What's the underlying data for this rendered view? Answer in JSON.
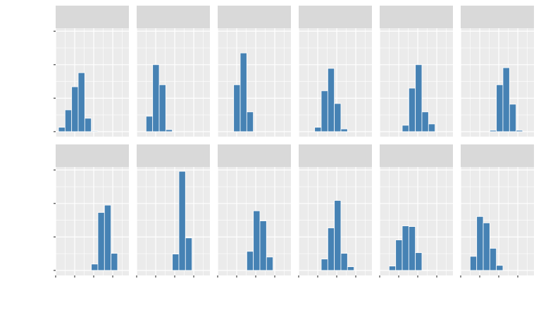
{
  "chart_data": {
    "type": "bar",
    "subtype": "faceted-histogram",
    "layout": {
      "rows": 2,
      "cols": 6
    },
    "title": "",
    "xlabel": "",
    "ylabel": "",
    "strip_labels": [
      "",
      "",
      "",
      "",
      "",
      "",
      "",
      "",
      "",
      "",
      "",
      ""
    ],
    "xlim": [
      0,
      3.85
    ],
    "ylim": [
      -0.15,
      3.09
    ],
    "x_breaks": [
      0,
      1,
      2,
      3
    ],
    "y_breaks": [
      0,
      1,
      2,
      3
    ],
    "tick_labels_shown": false,
    "bin_start": 0.15,
    "bin_width": 0.345,
    "grid": true,
    "colors": {
      "bar": "#4682B4",
      "bar_outline": "#FFFFFF",
      "panel_bg": "#EBEBEB",
      "strip_bg": "#D9D9D9",
      "grid": "#FFFFFF",
      "tick": "#333333"
    },
    "panels": [
      {
        "counts": [
          0.13,
          0.65,
          1.34,
          1.76,
          0.4,
          0.02,
          0,
          0,
          0,
          0,
          0
        ]
      },
      {
        "counts": [
          0,
          0.46,
          2.0,
          1.4,
          0.06,
          0,
          0,
          0,
          0,
          0,
          0
        ]
      },
      {
        "counts": [
          0,
          0,
          1.4,
          2.35,
          0.59,
          0,
          0,
          0,
          0,
          0,
          0
        ]
      },
      {
        "counts": [
          0,
          0,
          0.13,
          1.22,
          1.89,
          0.84,
          0.08,
          0,
          0,
          0,
          0
        ]
      },
      {
        "counts": [
          0,
          0,
          0,
          0.19,
          1.3,
          2.0,
          0.59,
          0.23,
          0,
          0,
          0
        ]
      },
      {
        "counts": [
          0,
          0,
          0,
          0,
          0.04,
          1.4,
          1.91,
          0.82,
          0.04,
          0,
          0
        ]
      },
      {
        "counts": [
          0,
          0,
          0,
          0,
          0,
          0.19,
          1.73,
          1.95,
          0.51,
          0,
          0
        ]
      },
      {
        "counts": [
          0,
          0,
          0,
          0,
          0,
          0.49,
          2.96,
          0.97,
          0,
          0,
          0
        ]
      },
      {
        "counts": [
          0,
          0,
          0,
          0,
          0.57,
          1.78,
          1.48,
          0.4,
          0,
          0,
          0
        ]
      },
      {
        "counts": [
          0,
          0,
          0,
          0.34,
          1.27,
          2.09,
          0.51,
          0.11,
          0,
          0,
          0
        ]
      },
      {
        "counts": [
          0,
          0.13,
          0.91,
          1.33,
          1.31,
          0.53,
          0.01,
          0,
          0,
          0,
          0
        ]
      },
      {
        "counts": [
          0,
          0.42,
          1.61,
          1.42,
          0.66,
          0.15,
          0,
          0,
          0,
          0,
          0
        ]
      }
    ]
  }
}
